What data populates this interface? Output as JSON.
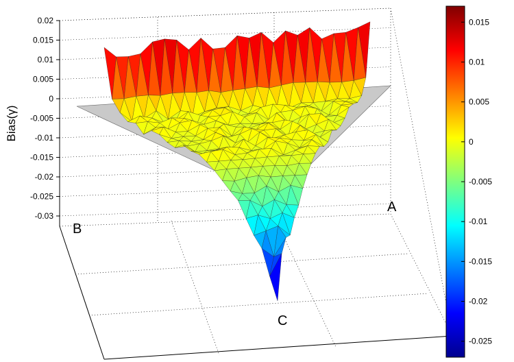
{
  "chart_data": {
    "type": "surface",
    "zlabel": "Bias(γ)",
    "z_ticks": [
      "0.02",
      "0.015",
      "0.01",
      "0.005",
      "0",
      "-0.005",
      "-0.01",
      "-0.015",
      "-0.02",
      "-0.025",
      "-0.03"
    ],
    "zlim": [
      -0.03,
      0.02
    ],
    "corner_labels": [
      "A",
      "B",
      "C"
    ],
    "grid": true,
    "surface": {
      "domain": "triangle A-B-C (mixture simplex)",
      "plateau_value": 0,
      "back_edge_max": 0.017,
      "front_vertex_min": -0.027,
      "noise_amplitude": 0.003
    },
    "colorbar": {
      "colormap": "jet",
      "range": [
        -0.027,
        0.017
      ],
      "ticks": [
        "0.015",
        "0.01",
        "0.005",
        "0",
        "-0.005",
        "-0.01",
        "-0.015",
        "-0.02",
        "-0.025"
      ],
      "colors": [
        "#00008f",
        "#0000ff",
        "#00ffff",
        "#ffff00",
        "#ff0000",
        "#800000"
      ]
    }
  }
}
